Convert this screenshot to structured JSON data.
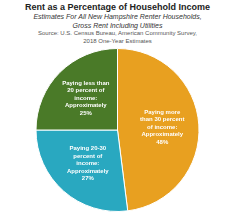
{
  "chart_data": {
    "type": "pie",
    "title": "Rent as a Percentage of Household Income",
    "subtitle": [
      "Estimates For All New Hampshire Renter Households,",
      "Gross Rent Including Utilities"
    ],
    "annotations": [
      "Source: U.S. Census Bureau, American Community Survey,",
      "2018 One-Year Estimates"
    ],
    "categories": [
      "Paying more\nthan 30 percent\nof income:\nApproximately\n48%",
      "Paying 20-30\npercent of\nincome:\nApproximately\n27%",
      "Paying less than\n20 percent of\nincome:\nApproximately\n25%"
    ],
    "values": [
      48,
      27,
      25
    ],
    "colors": [
      "#E8A020",
      "#29A8C0",
      "#4A7A28"
    ]
  }
}
